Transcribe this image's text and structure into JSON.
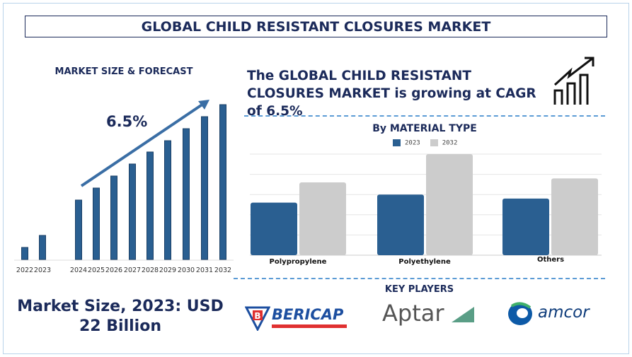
{
  "header": {
    "title": "GLOBAL CHILD RESISTANT CLOSURES MARKET"
  },
  "left": {
    "heading": "MARKET SIZE & FORECAST",
    "cagr_label": "6.5%",
    "market_size": "Market Size, 2023: USD 22 Billion"
  },
  "right": {
    "cagr_statement": "The GLOBAL CHILD RESISTANT CLOSURES MARKET is growing at CAGR of 6.5%",
    "growth_icon": "bar-chart-growth-arrow-icon",
    "key_players_heading": "KEY PLAYERS",
    "key_players": [
      {
        "name": "BERICAP"
      },
      {
        "name": "Aptar"
      },
      {
        "name": "amcor"
      }
    ]
  },
  "colors": {
    "navy": "#1b2a5a",
    "bar_blue": "#2a5f91",
    "bar_gray": "#cccccc",
    "dash": "#5b9bd5"
  },
  "chart_data": [
    {
      "type": "bar",
      "title": "MARKET SIZE & FORECAST",
      "categories": [
        "2022",
        "2023",
        "2024",
        "2025",
        "2026",
        "2027",
        "2028",
        "2029",
        "2030",
        "2031",
        "2032"
      ],
      "values": [
        17,
        34,
        84,
        101,
        118,
        135,
        152,
        168,
        185,
        202,
        219
      ],
      "annotation": "6.5%",
      "ylim": [
        0,
        225
      ],
      "grid": false
    },
    {
      "type": "bar",
      "title": "By MATERIAL TYPE",
      "categories": [
        "Polypropylene",
        "Polyethylene",
        "Others"
      ],
      "series": [
        {
          "name": "2023",
          "color": "#2a5f91",
          "values": [
            2.6,
            3.0,
            2.8
          ]
        },
        {
          "name": "2032",
          "color": "#cccccc",
          "values": [
            3.6,
            5.0,
            3.8
          ]
        }
      ],
      "ylim": [
        0,
        5
      ],
      "grid": true,
      "legend": "top"
    }
  ]
}
